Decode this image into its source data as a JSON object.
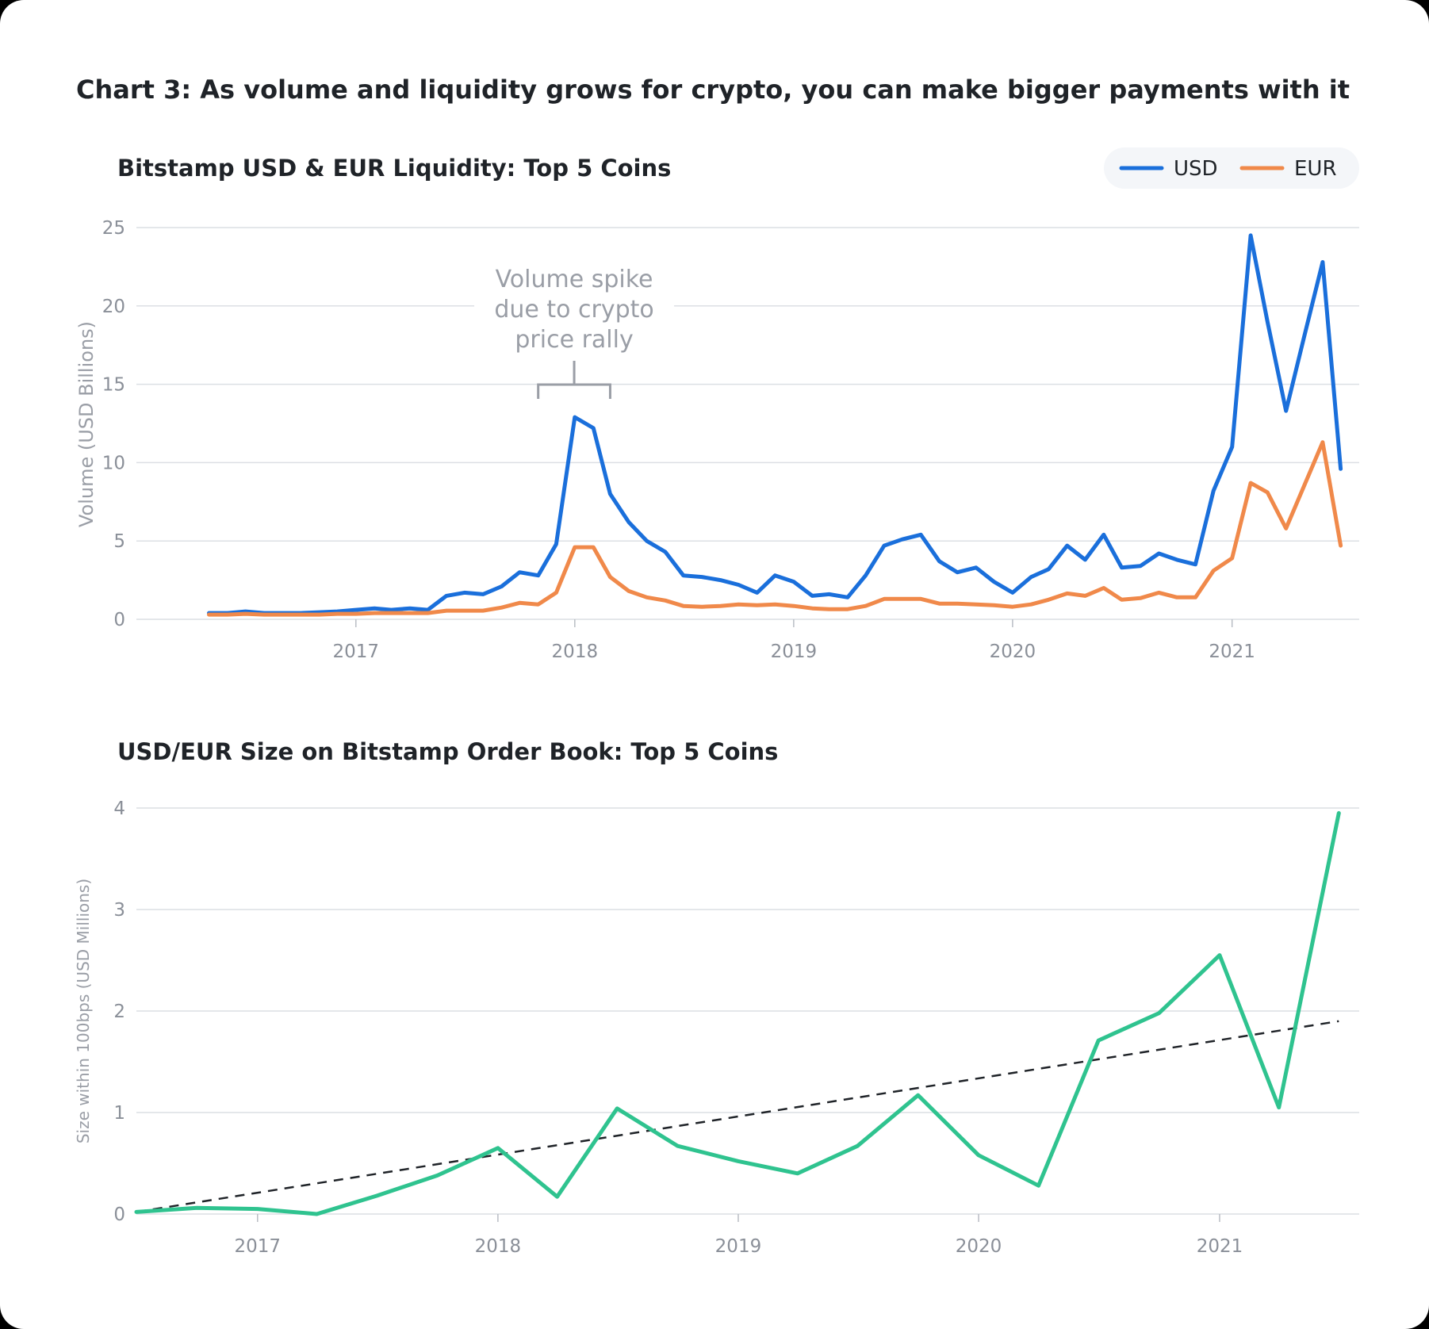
{
  "page": {
    "title": "Chart 3: As volume and liquidity grows for crypto, you can make bigger payments with it"
  },
  "chart_data": [
    {
      "type": "line",
      "title": "Bitstamp USD & EUR Liquidity: Top 5 Coins",
      "ylabel": "Volume (USD Billions)",
      "xlabel": "",
      "ylim": [
        0,
        25
      ],
      "yticks": [
        "0",
        "5",
        "10",
        "15",
        "20",
        "25"
      ],
      "xlim": [
        "2016-01-01",
        "2021-08-01"
      ],
      "xticks": [
        {
          "label": "2017",
          "date": "2017-01-01"
        },
        {
          "label": "2018",
          "date": "2018-01-01"
        },
        {
          "label": "2019",
          "date": "2019-01-01"
        },
        {
          "label": "2020",
          "date": "2020-01-01"
        },
        {
          "label": "2021",
          "date": "2021-01-01"
        }
      ],
      "grid": true,
      "legend": "top-right",
      "annotation": {
        "lines": [
          "Volume spike",
          "due to crypto",
          "price rally"
        ],
        "from": "2017-11-01",
        "to": "2018-03-01"
      },
      "series": [
        {
          "name": "USD",
          "color": "#1a6fdb",
          "points": [
            [
              "2016-05-01",
              0.4
            ],
            [
              "2016-06-01",
              0.4
            ],
            [
              "2016-07-01",
              0.5
            ],
            [
              "2016-08-01",
              0.4
            ],
            [
              "2016-09-01",
              0.4
            ],
            [
              "2016-10-01",
              0.4
            ],
            [
              "2016-11-01",
              0.45
            ],
            [
              "2016-12-01",
              0.5
            ],
            [
              "2017-01-01",
              0.6
            ],
            [
              "2017-02-01",
              0.7
            ],
            [
              "2017-03-01",
              0.6
            ],
            [
              "2017-04-01",
              0.7
            ],
            [
              "2017-05-01",
              0.6
            ],
            [
              "2017-06-01",
              1.5
            ],
            [
              "2017-07-01",
              1.7
            ],
            [
              "2017-08-01",
              1.6
            ],
            [
              "2017-09-01",
              2.1
            ],
            [
              "2017-10-01",
              3.0
            ],
            [
              "2017-11-01",
              2.8
            ],
            [
              "2017-12-01",
              4.8
            ],
            [
              "2018-01-01",
              12.9
            ],
            [
              "2018-02-01",
              12.2
            ],
            [
              "2018-03-01",
              8.0
            ],
            [
              "2018-04-01",
              6.2
            ],
            [
              "2018-05-01",
              5.0
            ],
            [
              "2018-06-01",
              4.3
            ],
            [
              "2018-07-01",
              2.8
            ],
            [
              "2018-08-01",
              2.7
            ],
            [
              "2018-09-01",
              2.5
            ],
            [
              "2018-10-01",
              2.2
            ],
            [
              "2018-11-01",
              1.7
            ],
            [
              "2018-12-01",
              2.8
            ],
            [
              "2019-01-01",
              2.4
            ],
            [
              "2019-02-01",
              1.5
            ],
            [
              "2019-03-01",
              1.6
            ],
            [
              "2019-04-01",
              1.4
            ],
            [
              "2019-05-01",
              2.8
            ],
            [
              "2019-06-01",
              4.7
            ],
            [
              "2019-07-01",
              5.1
            ],
            [
              "2019-08-01",
              5.4
            ],
            [
              "2019-09-01",
              3.7
            ],
            [
              "2019-10-01",
              3.0
            ],
            [
              "2019-11-01",
              3.3
            ],
            [
              "2019-12-01",
              2.4
            ],
            [
              "2020-01-01",
              1.7
            ],
            [
              "2020-02-01",
              2.7
            ],
            [
              "2020-03-01",
              3.2
            ],
            [
              "2020-04-01",
              4.7
            ],
            [
              "2020-05-01",
              3.8
            ],
            [
              "2020-06-01",
              5.4
            ],
            [
              "2020-07-01",
              3.3
            ],
            [
              "2020-08-01",
              3.4
            ],
            [
              "2020-09-01",
              4.2
            ],
            [
              "2020-10-01",
              3.8
            ],
            [
              "2020-11-01",
              3.5
            ],
            [
              "2020-12-01",
              8.2
            ],
            [
              "2021-01-01",
              11.0
            ],
            [
              "2021-02-01",
              24.5
            ],
            [
              "2021-03-01",
              19.0
            ],
            [
              "2021-04-01",
              13.3
            ],
            [
              "2021-05-01",
              18.0
            ],
            [
              "2021-06-01",
              22.8
            ],
            [
              "2021-07-01",
              9.6
            ]
          ]
        },
        {
          "name": "EUR",
          "color": "#f0894a",
          "points": [
            [
              "2016-05-01",
              0.3
            ],
            [
              "2016-06-01",
              0.3
            ],
            [
              "2016-07-01",
              0.35
            ],
            [
              "2016-08-01",
              0.3
            ],
            [
              "2016-09-01",
              0.3
            ],
            [
              "2016-10-01",
              0.3
            ],
            [
              "2016-11-01",
              0.3
            ],
            [
              "2016-12-01",
              0.35
            ],
            [
              "2017-01-01",
              0.35
            ],
            [
              "2017-02-01",
              0.4
            ],
            [
              "2017-03-01",
              0.4
            ],
            [
              "2017-04-01",
              0.4
            ],
            [
              "2017-05-01",
              0.4
            ],
            [
              "2017-06-01",
              0.55
            ],
            [
              "2017-07-01",
              0.55
            ],
            [
              "2017-08-01",
              0.55
            ],
            [
              "2017-09-01",
              0.75
            ],
            [
              "2017-10-01",
              1.05
            ],
            [
              "2017-11-01",
              0.95
            ],
            [
              "2017-12-01",
              1.7
            ],
            [
              "2018-01-01",
              4.6
            ],
            [
              "2018-02-01",
              4.6
            ],
            [
              "2018-03-01",
              2.7
            ],
            [
              "2018-04-01",
              1.8
            ],
            [
              "2018-05-01",
              1.4
            ],
            [
              "2018-06-01",
              1.2
            ],
            [
              "2018-07-01",
              0.85
            ],
            [
              "2018-08-01",
              0.8
            ],
            [
              "2018-09-01",
              0.85
            ],
            [
              "2018-10-01",
              0.95
            ],
            [
              "2018-11-01",
              0.9
            ],
            [
              "2018-12-01",
              0.95
            ],
            [
              "2019-01-01",
              0.85
            ],
            [
              "2019-02-01",
              0.7
            ],
            [
              "2019-03-01",
              0.65
            ],
            [
              "2019-04-01",
              0.65
            ],
            [
              "2019-05-01",
              0.85
            ],
            [
              "2019-06-01",
              1.3
            ],
            [
              "2019-07-01",
              1.3
            ],
            [
              "2019-08-01",
              1.3
            ],
            [
              "2019-09-01",
              1.0
            ],
            [
              "2019-10-01",
              1.0
            ],
            [
              "2019-11-01",
              0.95
            ],
            [
              "2019-12-01",
              0.9
            ],
            [
              "2020-01-01",
              0.8
            ],
            [
              "2020-02-01",
              0.95
            ],
            [
              "2020-03-01",
              1.25
            ],
            [
              "2020-04-01",
              1.65
            ],
            [
              "2020-05-01",
              1.5
            ],
            [
              "2020-06-01",
              2.0
            ],
            [
              "2020-07-01",
              1.25
            ],
            [
              "2020-08-01",
              1.35
            ],
            [
              "2020-09-01",
              1.7
            ],
            [
              "2020-10-01",
              1.4
            ],
            [
              "2020-11-01",
              1.4
            ],
            [
              "2020-12-01",
              3.1
            ],
            [
              "2021-01-01",
              3.9
            ],
            [
              "2021-02-01",
              8.7
            ],
            [
              "2021-03-01",
              8.1
            ],
            [
              "2021-04-01",
              5.8
            ],
            [
              "2021-05-01",
              8.5
            ],
            [
              "2021-06-01",
              11.3
            ],
            [
              "2021-07-01",
              4.7
            ]
          ]
        }
      ]
    },
    {
      "type": "line",
      "title": "USD/EUR Size on Bitstamp Order Book: Top 5 Coins",
      "ylabel": "Size within 100bps (USD Millions)",
      "xlabel": "",
      "ylim": [
        0,
        4
      ],
      "yticks": [
        "0",
        "1",
        "2",
        "3",
        "4"
      ],
      "xlim": [
        "2016-07-01",
        "2021-08-01"
      ],
      "xticks": [
        {
          "label": "2017",
          "date": "2017-01-01"
        },
        {
          "label": "2018",
          "date": "2018-01-01"
        },
        {
          "label": "2019",
          "date": "2019-01-01"
        },
        {
          "label": "2020",
          "date": "2020-01-01"
        },
        {
          "label": "2021",
          "date": "2021-01-01"
        }
      ],
      "grid": true,
      "series": [
        {
          "color": "#2fc38f",
          "style": "solid",
          "points": [
            [
              "2016-07-01",
              0.02
            ],
            [
              "2016-10-01",
              0.06
            ],
            [
              "2017-01-01",
              0.05
            ],
            [
              "2017-04-01",
              0.0
            ],
            [
              "2017-07-01",
              0.18
            ],
            [
              "2017-10-01",
              0.38
            ],
            [
              "2018-01-01",
              0.65
            ],
            [
              "2018-04-01",
              0.17
            ],
            [
              "2018-07-01",
              1.04
            ],
            [
              "2018-10-01",
              0.67
            ],
            [
              "2019-01-01",
              0.52
            ],
            [
              "2019-04-01",
              0.4
            ],
            [
              "2019-07-01",
              0.67
            ],
            [
              "2019-10-01",
              1.17
            ],
            [
              "2020-01-01",
              0.58
            ],
            [
              "2020-04-01",
              0.28
            ],
            [
              "2020-07-01",
              1.71
            ],
            [
              "2020-10-01",
              1.98
            ],
            [
              "2021-01-01",
              2.55
            ],
            [
              "2021-04-01",
              1.05
            ],
            [
              "2021-07-01",
              3.95
            ]
          ]
        },
        {
          "color": "#1f2328",
          "style": "dashed",
          "trend": true,
          "points": [
            [
              "2016-07-01",
              0.02
            ],
            [
              "2021-07-01",
              1.9
            ]
          ]
        }
      ]
    }
  ]
}
